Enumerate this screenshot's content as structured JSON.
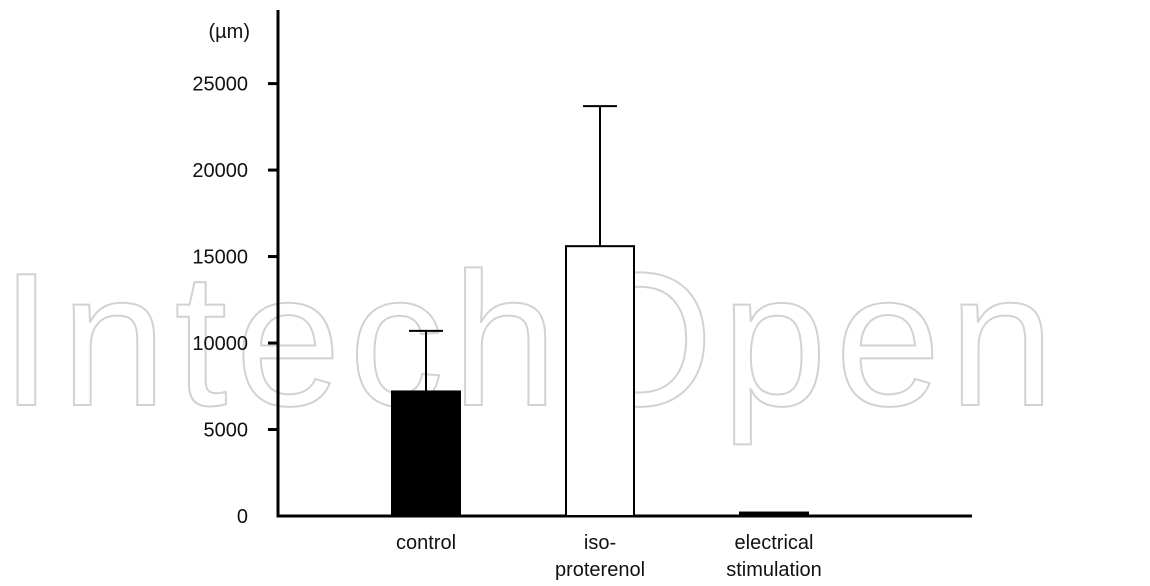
{
  "watermark": "IntechOpen",
  "chart_data": {
    "type": "bar",
    "y_unit": "(µm)",
    "ylim": [
      0,
      27000
    ],
    "yticks": [
      0,
      5000,
      10000,
      15000,
      20000,
      25000
    ],
    "categories": [
      {
        "lines": [
          "control"
        ]
      },
      {
        "lines": [
          "iso-",
          "proterenol"
        ]
      },
      {
        "lines": [
          "electrical",
          "stimulation"
        ]
      }
    ],
    "series": [
      {
        "values": [
          7200,
          15600,
          200
        ],
        "error_upper": [
          10700,
          23700,
          200
        ],
        "fills": [
          "#000000",
          "#ffffff",
          "#000000"
        ]
      }
    ],
    "grid": false,
    "legend": "none"
  }
}
